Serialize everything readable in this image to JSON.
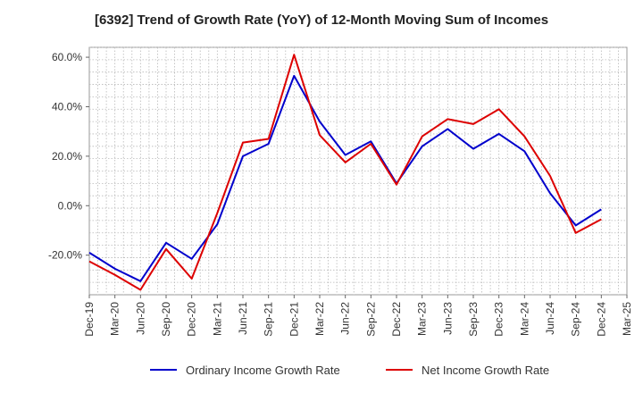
{
  "chart_data": {
    "type": "line",
    "title": "[6392]  Trend of Growth Rate (YoY) of 12-Month Moving Sum of Incomes",
    "xlabel": "",
    "ylabel": "",
    "ylim": [
      -36,
      64
    ],
    "yticks": [
      -20,
      0,
      20,
      40,
      60
    ],
    "ytick_labels": [
      "-20.0%",
      "0.0%",
      "20.0%",
      "40.0%",
      "60.0%"
    ],
    "categories": [
      "Dec-19",
      "Mar-20",
      "Jun-20",
      "Sep-20",
      "Dec-20",
      "Mar-21",
      "Jun-21",
      "Sep-21",
      "Dec-21",
      "Mar-22",
      "Jun-22",
      "Sep-22",
      "Dec-22",
      "Mar-23",
      "Jun-23",
      "Sep-23",
      "Dec-23",
      "Mar-24",
      "Jun-24",
      "Sep-24",
      "Dec-24",
      "Mar-25"
    ],
    "grid": true,
    "legend_position": "bottom",
    "series": [
      {
        "name": "Ordinary Income Growth Rate",
        "color": "#0000cc",
        "values": [
          -19,
          -25.5,
          -30.5,
          -15,
          -21.5,
          -7.5,
          20,
          25,
          52.5,
          34,
          20.5,
          26,
          9,
          24,
          31,
          23,
          29,
          22,
          5,
          -8,
          -1.5,
          null
        ]
      },
      {
        "name": "Net Income Growth Rate",
        "color": "#dd0000",
        "values": [
          -22.5,
          -28,
          -34,
          -17.5,
          -29.5,
          -3,
          25.5,
          27,
          61,
          28.5,
          17.5,
          25,
          8.5,
          28,
          35,
          33,
          39,
          28,
          12,
          -11,
          -5.5,
          null
        ]
      }
    ]
  }
}
